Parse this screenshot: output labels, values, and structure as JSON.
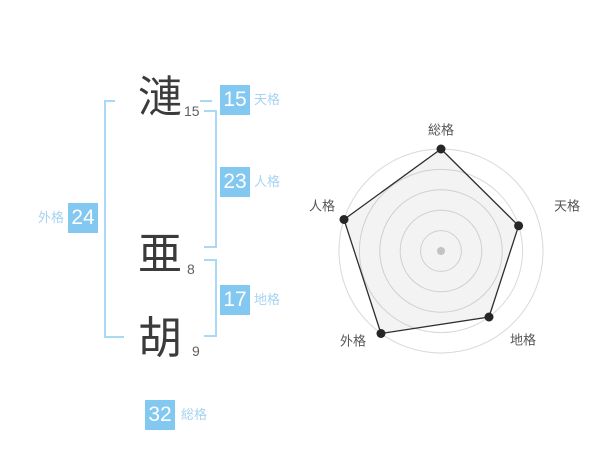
{
  "page": {
    "background": "#ffffff"
  },
  "name_breakdown": {
    "characters": [
      {
        "glyph": "漣",
        "strokes": "15"
      },
      {
        "glyph": "亜",
        "strokes": "8"
      },
      {
        "glyph": "胡",
        "strokes": "9"
      }
    ],
    "badges": [
      {
        "id": "tenkaku",
        "value": "15",
        "label": "天格"
      },
      {
        "id": "jinkaku",
        "value": "23",
        "label": "人格"
      },
      {
        "id": "chikaku",
        "value": "17",
        "label": "地格"
      },
      {
        "id": "gaikaku",
        "value": "24",
        "label": "外格"
      },
      {
        "id": "soukaku",
        "value": "32",
        "label": "総格"
      }
    ],
    "colors": {
      "badge_bg": "#82c8f0",
      "badge_value": "#ffffff",
      "badge_label": "#a5d4f1",
      "bracket": "#a9d9f4",
      "kanji": "#3b3b3b",
      "stroke_count": "#606060"
    }
  },
  "chart_data": {
    "type": "radar",
    "categories": [
      "総格",
      "天格",
      "地格",
      "外格",
      "人格"
    ],
    "values": [
      5,
      4,
      4,
      5,
      5
    ],
    "max": 5,
    "rings": 5,
    "grid": "circular",
    "legend": "none",
    "title": "",
    "colors": {
      "ring": "#d9d9d9",
      "polygon_stroke": "#2e2e2e",
      "polygon_fill": "rgba(120,120,120,0.09)",
      "vertex": "#262626",
      "center_dot": "#c3c3c3",
      "label": "#555555"
    }
  }
}
